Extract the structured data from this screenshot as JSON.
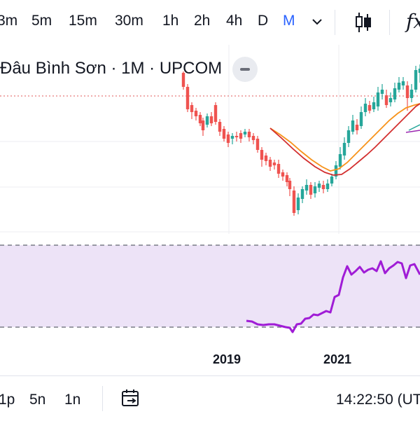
{
  "toolbar": {
    "timeframes": [
      "3m",
      "5m",
      "15m",
      "30m",
      "1h",
      "2h",
      "4h",
      "D",
      "M"
    ],
    "active_timeframe": "M",
    "icons": [
      "chevron-down-icon",
      "candles-icon",
      "indicators-fx-icon"
    ],
    "fx_label": "fx"
  },
  "chart": {
    "legend_title": "Đâu Bình Sơn · 1M · UPCOM",
    "x_axis_labels": [
      "2019",
      "2021"
    ]
  },
  "chart_data": {
    "type": "candlestick",
    "xlabels": [
      "2019",
      "2021"
    ],
    "series": [
      "price",
      "ma1",
      "ma2",
      "rsi"
    ],
    "rsi_band": "filled",
    "colors": {
      "up": "#26a69a",
      "down": "#ef5350",
      "ma_orange": "#f7931a",
      "ma_red": "#d32f2f",
      "rsi_line": "#9c27b0",
      "rsi_band": "#ede3f7"
    }
  },
  "bottom_bar": {
    "ranges": [
      "1p",
      "5n",
      "1n"
    ],
    "time": "14:22:50 (UT"
  },
  "colors": {
    "accent": "#2962ff",
    "text": "#131722",
    "separator": "#e0e3eb"
  }
}
